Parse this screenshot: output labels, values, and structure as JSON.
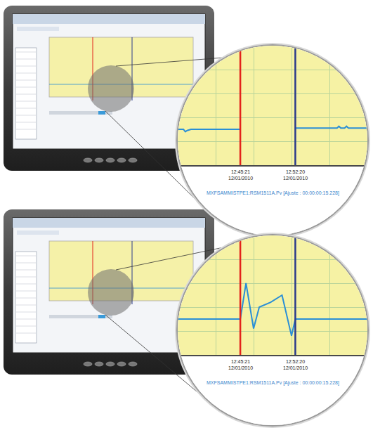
{
  "chart_data": [
    {
      "type": "line",
      "x": [
        0,
        3,
        4,
        5,
        7,
        15,
        25,
        33,
        34,
        62,
        63,
        70,
        80,
        84,
        85,
        86,
        88,
        89,
        90,
        100
      ],
      "values": [
        30,
        30,
        28,
        29,
        30,
        30,
        30,
        30,
        null,
        31,
        31,
        31,
        31,
        31,
        32.5,
        31,
        31,
        32.5,
        31,
        31
      ],
      "color": "#2a8fd6",
      "xlim": [
        0,
        100
      ],
      "xticks": [
        0,
        20,
        40,
        60,
        80,
        100
      ],
      "ylim": [
        0,
        100
      ],
      "yticks": [
        0,
        20,
        40,
        60,
        80,
        100
      ],
      "grid": true,
      "tick_labels": false,
      "line_style": "solid",
      "xlabel": "MXFSAMMISTPE1:RSM1511A.Pv [Ajuste : 00:00:00:15.228]",
      "annotations": [
        {
          "x": 33,
          "color": "#e3231b",
          "text": "12:45:21",
          "subtext": "12/01/2010"
        },
        {
          "x": 62,
          "color": "#2b3a8c",
          "text": "12:52:20",
          "subtext": "12/01/2010"
        }
      ]
    },
    {
      "type": "line",
      "x": [
        0,
        10,
        20,
        33,
        36,
        40,
        43,
        49,
        55,
        60,
        62,
        70,
        80,
        90,
        100
      ],
      "values": [
        30,
        30,
        30,
        30,
        60,
        22,
        40,
        44,
        50,
        16,
        30,
        30,
        30,
        30,
        30
      ],
      "color": "#2a8fd6",
      "xlim": [
        0,
        100
      ],
      "xticks": [
        0,
        20,
        40,
        60,
        80,
        100
      ],
      "ylim": [
        0,
        100
      ],
      "yticks": [
        0,
        20,
        40,
        60,
        80,
        100
      ],
      "grid": true,
      "tick_labels": false,
      "line_style": "solid",
      "xlabel": "MXFSAMMISTPE1:RSM1511A.Pv [Ajuste : 00:00:00:15.228]",
      "annotations": [
        {
          "x": 33,
          "color": "#e3231b",
          "text": "12:45:21",
          "subtext": "12/01/2010"
        },
        {
          "x": 62,
          "color": "#2b3a8c",
          "text": "12:52:20",
          "subtext": "12/01/2010"
        }
      ]
    }
  ]
}
